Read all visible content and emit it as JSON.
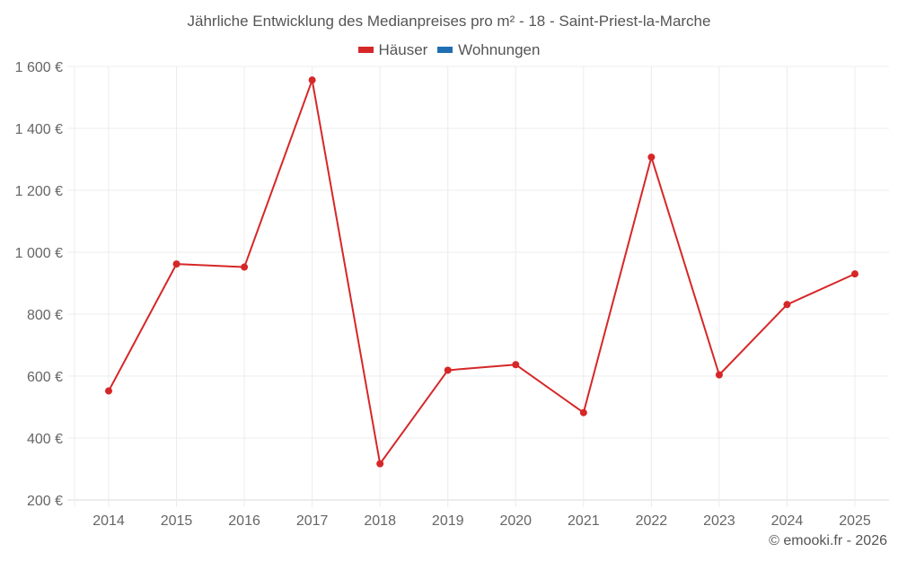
{
  "title": "Jährliche Entwicklung des Medianpreises pro m² - 18 - Saint-Priest-la-Marche",
  "legend": [
    {
      "label": "Häuser",
      "color": "#d62728"
    },
    {
      "label": "Wohnungen",
      "color": "#1f6fb2"
    }
  ],
  "credit": "© emooki.fr - 2026",
  "chart_data": {
    "type": "line",
    "title": "Jährliche Entwicklung des Medianpreises pro m² - 18 - Saint-Priest-la-Marche",
    "xlabel": "",
    "ylabel": "",
    "categories": [
      "2014",
      "2015",
      "2016",
      "2017",
      "2018",
      "2019",
      "2020",
      "2021",
      "2022",
      "2023",
      "2024",
      "2025"
    ],
    "series": [
      {
        "name": "Häuser",
        "color": "#d62728",
        "values": [
          552,
          962,
          952,
          1556,
          317,
          619,
          637,
          482,
          1307,
          604,
          831,
          930
        ]
      },
      {
        "name": "Wohnungen",
        "color": "#1f6fb2",
        "values": []
      }
    ],
    "yticks": [
      200,
      400,
      600,
      800,
      1000,
      1200,
      1400,
      1600
    ],
    "ytick_labels": [
      "200 €",
      "400 €",
      "600 €",
      "800 €",
      "1 000 €",
      "1 200 €",
      "1 400 €",
      "1 600 €"
    ],
    "ylim": [
      200,
      1600
    ],
    "grid": true,
    "legend_position": "top"
  }
}
